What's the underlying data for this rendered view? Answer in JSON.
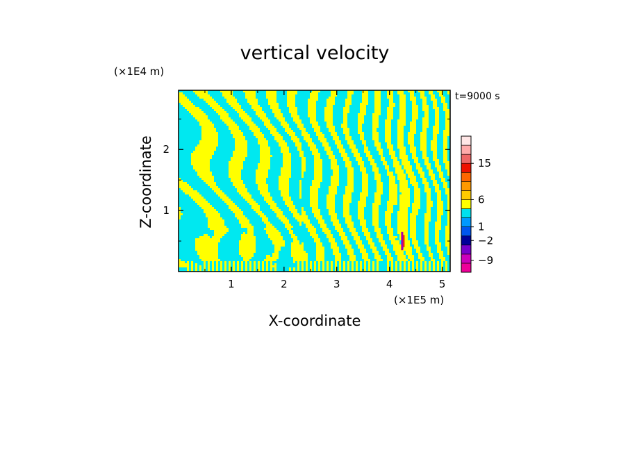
{
  "chart_data": {
    "type": "heatmap",
    "title": "vertical velocity",
    "xlabel": "X-coordinate",
    "ylabel": "Z-coordinate",
    "x_unit": "(×1E5 m)",
    "y_unit": "(×1E4 m)",
    "time_label": "t=9000 s",
    "xlim": [
      0,
      5.15
    ],
    "ylim": [
      0,
      2.97
    ],
    "x_ticks": [
      "1",
      "2",
      "3",
      "4",
      "5"
    ],
    "y_ticks": [
      "1",
      "2"
    ],
    "colorbar": {
      "tick_labels": [
        "15",
        "6",
        "1",
        "−2",
        "−9"
      ],
      "levels": [
        {
          "color": "#ee0099"
        },
        {
          "color": "#cc00bb"
        },
        {
          "color": "#7700cc"
        },
        {
          "color": "#000099"
        },
        {
          "color": "#0055ee"
        },
        {
          "color": "#0099ff"
        },
        {
          "color": "#00e0ee"
        },
        {
          "color": "#ffff00"
        },
        {
          "color": "#ffcc00"
        },
        {
          "color": "#ff9900"
        },
        {
          "color": "#ff6600"
        },
        {
          "color": "#ee1100"
        },
        {
          "color": "#ee6666"
        },
        {
          "color": "#ffaaaa"
        },
        {
          "color": "#ffe6e6"
        }
      ]
    },
    "field_colors": {
      "upward": "#ffff00",
      "downward": "#00e8f0",
      "strong_updraft": "#ee2200",
      "strong_downdraft": "#aa00aa"
    }
  }
}
